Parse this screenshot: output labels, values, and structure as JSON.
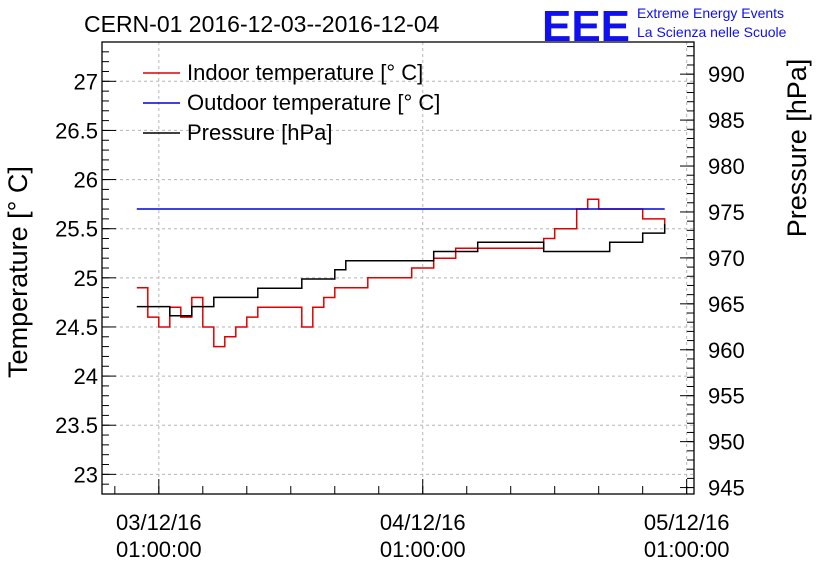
{
  "title": "CERN-01 2016-12-03--2016-12-04",
  "logo": {
    "mark": "EEE",
    "line1": "Extreme Energy Events",
    "line2": "La Scienza nelle Scuole"
  },
  "colors": {
    "indoor": "#e00000",
    "outdoor": "#0000dd",
    "pressure": "#000000",
    "logo": "#1010ee"
  },
  "chart_data": {
    "type": "line",
    "title": "CERN-01 2016-12-03--2016-12-04",
    "ylabel": "Temperature [° C]",
    "y2label": "Pressure [hPa]",
    "xlim": [
      "2016-12-02 19:50",
      "2016-12-05 01:40"
    ],
    "ylim": [
      22.8,
      27.4
    ],
    "y2lim": [
      944.3,
      993.5
    ],
    "grid": true,
    "legend": "top-left",
    "x_ticks": [
      {
        "date": "03/12/16",
        "time": "01:00:00",
        "t": "2016-12-03 01:00"
      },
      {
        "date": "04/12/16",
        "time": "01:00:00",
        "t": "2016-12-04 01:00"
      },
      {
        "date": "05/12/16",
        "time": "01:00:00",
        "t": "2016-12-05 01:00"
      }
    ],
    "y_ticks": [
      "23",
      "23.5",
      "24",
      "24.5",
      "25",
      "25.5",
      "26",
      "26.5",
      "27"
    ],
    "y2_ticks": [
      "945",
      "950",
      "955",
      "960",
      "965",
      "970",
      "975",
      "980",
      "985",
      "990"
    ],
    "series": [
      {
        "name": "Indoor temperature [° C]",
        "axis": "left",
        "points": [
          [
            "2016-12-02 23:00",
            24.9
          ],
          [
            "2016-12-03 00:00",
            24.6
          ],
          [
            "2016-12-03 01:00",
            24.5
          ],
          [
            "2016-12-03 02:00",
            24.7
          ],
          [
            "2016-12-03 03:00",
            24.6
          ],
          [
            "2016-12-03 04:00",
            24.8
          ],
          [
            "2016-12-03 05:00",
            24.5
          ],
          [
            "2016-12-03 06:00",
            24.3
          ],
          [
            "2016-12-03 07:00",
            24.4
          ],
          [
            "2016-12-03 08:00",
            24.5
          ],
          [
            "2016-12-03 09:00",
            24.6
          ],
          [
            "2016-12-03 10:00",
            24.7
          ],
          [
            "2016-12-03 12:00",
            24.7
          ],
          [
            "2016-12-03 14:00",
            24.5
          ],
          [
            "2016-12-03 15:00",
            24.7
          ],
          [
            "2016-12-03 16:00",
            24.8
          ],
          [
            "2016-12-03 17:00",
            24.9
          ],
          [
            "2016-12-03 18:00",
            24.9
          ],
          [
            "2016-12-03 20:00",
            25.0
          ],
          [
            "2016-12-03 22:00",
            25.0
          ],
          [
            "2016-12-04 00:00",
            25.1
          ],
          [
            "2016-12-04 01:00",
            25.1
          ],
          [
            "2016-12-04 02:00",
            25.2
          ],
          [
            "2016-12-04 03:00",
            25.2
          ],
          [
            "2016-12-04 04:00",
            25.3
          ],
          [
            "2016-12-04 06:00",
            25.3
          ],
          [
            "2016-12-04 08:00",
            25.3
          ],
          [
            "2016-12-04 10:00",
            25.3
          ],
          [
            "2016-12-04 12:00",
            25.4
          ],
          [
            "2016-12-04 13:00",
            25.5
          ],
          [
            "2016-12-04 15:00",
            25.7
          ],
          [
            "2016-12-04 16:00",
            25.8
          ],
          [
            "2016-12-04 17:00",
            25.7
          ],
          [
            "2016-12-04 18:00",
            25.7
          ],
          [
            "2016-12-04 20:00",
            25.7
          ],
          [
            "2016-12-04 21:00",
            25.6
          ],
          [
            "2016-12-04 22:00",
            25.6
          ],
          [
            "2016-12-04 23:00",
            25.5
          ]
        ]
      },
      {
        "name": "Outdoor temperature [° C]",
        "axis": "left",
        "points": [
          [
            "2016-12-02 23:00",
            25.7
          ],
          [
            "2016-12-04 23:00",
            25.7
          ]
        ]
      },
      {
        "name": "Pressure [hPa]",
        "axis": "right",
        "points": [
          [
            "2016-12-02 23:00",
            964.7
          ],
          [
            "2016-12-03 01:00",
            964.7
          ],
          [
            "2016-12-03 02:00",
            963.7
          ],
          [
            "2016-12-03 03:00",
            963.7
          ],
          [
            "2016-12-03 04:00",
            964.7
          ],
          [
            "2016-12-03 06:00",
            965.7
          ],
          [
            "2016-12-03 08:00",
            965.7
          ],
          [
            "2016-12-03 10:00",
            966.7
          ],
          [
            "2016-12-03 12:00",
            966.7
          ],
          [
            "2016-12-03 14:00",
            967.7
          ],
          [
            "2016-12-03 15:00",
            967.7
          ],
          [
            "2016-12-03 17:00",
            968.7
          ],
          [
            "2016-12-03 18:00",
            969.7
          ],
          [
            "2016-12-03 20:00",
            969.7
          ],
          [
            "2016-12-03 22:00",
            969.7
          ],
          [
            "2016-12-04 00:00",
            969.7
          ],
          [
            "2016-12-04 02:00",
            970.7
          ],
          [
            "2016-12-04 04:00",
            970.7
          ],
          [
            "2016-12-04 06:00",
            971.7
          ],
          [
            "2016-12-04 10:00",
            971.7
          ],
          [
            "2016-12-04 12:00",
            970.7
          ],
          [
            "2016-12-04 16:00",
            970.7
          ],
          [
            "2016-12-04 18:00",
            971.7
          ],
          [
            "2016-12-04 21:00",
            972.7
          ],
          [
            "2016-12-04 23:00",
            973.7
          ]
        ]
      }
    ]
  }
}
